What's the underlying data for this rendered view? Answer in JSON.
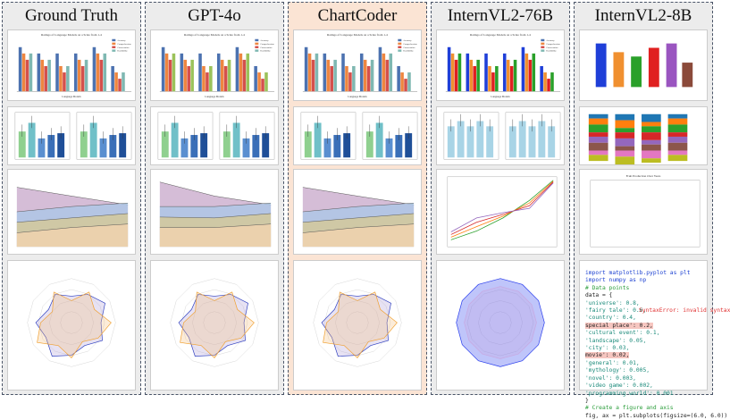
{
  "columns": [
    {
      "title": "Ground Truth",
      "highlight": false
    },
    {
      "title": "GPT-4o",
      "highlight": false
    },
    {
      "title": "ChartCoder",
      "highlight": true
    },
    {
      "title": "InternVL2-76B",
      "highlight": false
    },
    {
      "title": "InternVL2-8B",
      "highlight": false
    }
  ],
  "bar_chart": {
    "title": "Ratings of Language Models on a Scale from 1-4",
    "xlabel": "Language Models",
    "series": [
      {
        "name": "Accuracy",
        "color": "#4c72b0",
        "values": [
          3.5,
          3.0,
          3.0,
          3.0,
          3.5,
          2.0
        ]
      },
      {
        "name": "Comprehension",
        "color": "#ee8640",
        "values": [
          3.0,
          2.5,
          2.0,
          2.5,
          3.0,
          1.5
        ]
      },
      {
        "name": "Conversation",
        "color": "#d4504c",
        "values": [
          2.5,
          2.0,
          1.5,
          2.0,
          2.5,
          1.0
        ]
      },
      {
        "name": "Readability",
        "color": "#7fb8b2",
        "values": [
          3.0,
          2.5,
          2.0,
          2.5,
          3.0,
          1.5
        ]
      }
    ]
  },
  "line_chart": {
    "title": "Fruit Production Over Years"
  },
  "code": {
    "error": "SyntaxError: invalid syntax",
    "lines": [
      {
        "t": "import matplotlib.pyplot as plt",
        "c": "kw"
      },
      {
        "t": "import numpy as np",
        "c": "kw"
      },
      {
        "t": "# Data points",
        "c": "cm"
      },
      {
        "t": "data = {",
        "c": ""
      },
      {
        "t": "'universe': 0.8,",
        "c": "num"
      },
      {
        "t": "'fairy tale': 0.6,",
        "c": "num"
      },
      {
        "t": "'country': 0.4,",
        "c": "num"
      },
      {
        "t": "special place': 0.2,",
        "c": "hlt"
      },
      {
        "t": "'cultural event': 0.1,",
        "c": "num"
      },
      {
        "t": "'landscape': 0.05,",
        "c": "num"
      },
      {
        "t": "'city': 0.03,",
        "c": "num"
      },
      {
        "t": "movie': 0.02,",
        "c": "hlt"
      },
      {
        "t": "'general': 0.01,",
        "c": "num"
      },
      {
        "t": "'mythology': 0.005,",
        "c": "num"
      },
      {
        "t": "'novel': 0.003,",
        "c": "num"
      },
      {
        "t": "'video game': 0.002,",
        "c": "num"
      },
      {
        "t": "'programming world': 0.001",
        "c": "num"
      },
      {
        "t": "}",
        "c": ""
      },
      {
        "t": "# Create a figure and axis",
        "c": "cm"
      },
      {
        "t": "fig, ax = plt.subplots(figsize=(6.0, 6.0))",
        "c": ""
      }
    ]
  }
}
